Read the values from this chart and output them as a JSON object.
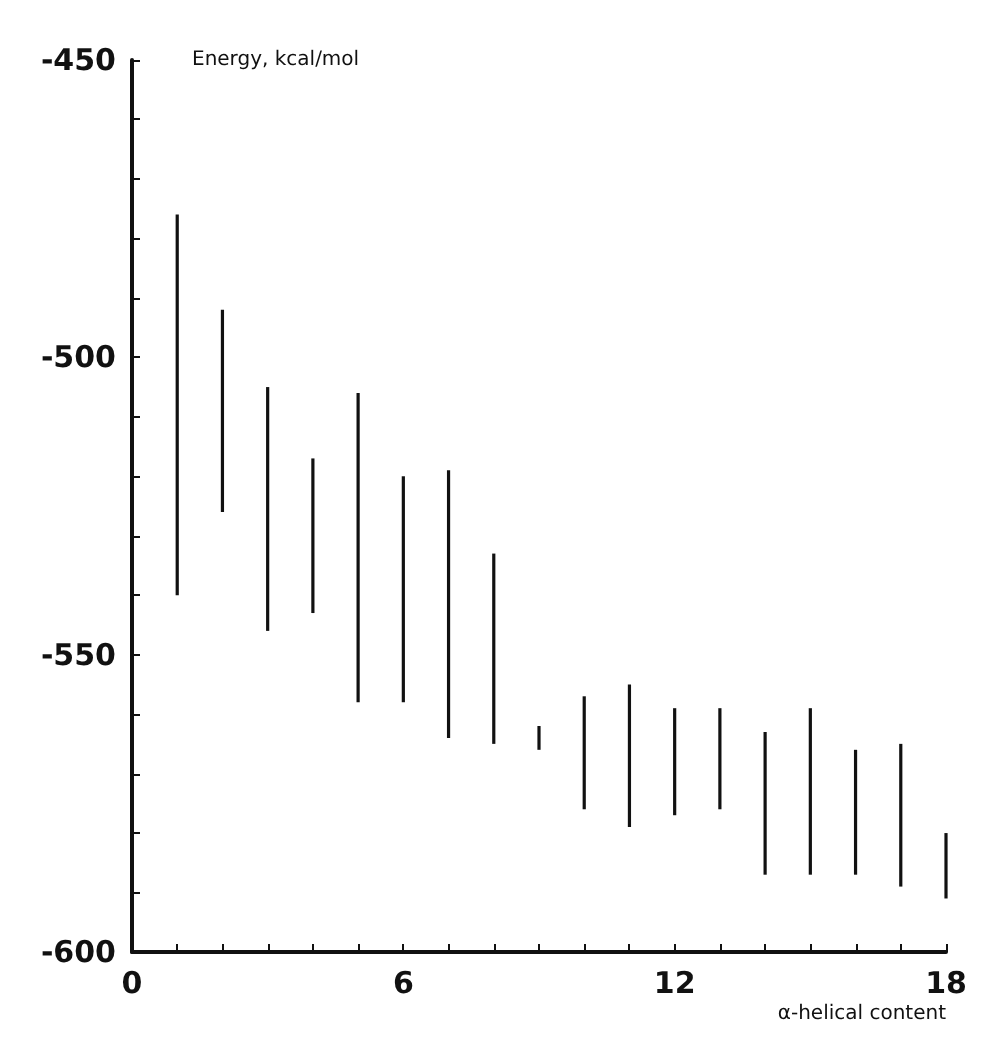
{
  "chart_data": {
    "type": "bar",
    "xlabel": "α-helical content",
    "ylabel": "Energy, kcal/mol",
    "x": [
      1,
      2,
      3,
      4,
      5,
      6,
      7,
      8,
      9,
      10,
      11,
      12,
      13,
      14,
      15,
      16,
      17,
      18
    ],
    "base": [
      -540,
      -526,
      -546,
      -543,
      -558,
      -558,
      -564,
      -565,
      -566,
      -576,
      -579,
      -577,
      -576,
      -587,
      -587,
      -587,
      -589,
      -591
    ],
    "values": [
      64,
      34,
      41,
      26,
      52,
      38,
      45,
      32,
      4,
      19,
      24,
      18,
      17,
      24,
      28,
      21,
      24,
      11
    ],
    "color": "#111111",
    "xlim": [
      0,
      18
    ],
    "xticks": [
      0,
      {
        "value": 1,
        "label": null
      },
      {
        "value": 2,
        "label": null
      },
      {
        "value": 3,
        "label": null
      },
      {
        "value": 4,
        "label": null
      },
      {
        "value": 5,
        "label": null
      },
      6,
      {
        "value": 7,
        "label": null
      },
      {
        "value": 8,
        "label": null
      },
      {
        "value": 9,
        "label": null
      },
      {
        "value": 10,
        "label": null
      },
      {
        "value": 11,
        "label": null
      },
      12,
      {
        "value": 13,
        "label": null
      },
      {
        "value": 14,
        "label": null
      },
      {
        "value": 15,
        "label": null
      },
      {
        "value": 16,
        "label": null
      },
      {
        "value": 17,
        "label": null
      },
      18
    ],
    "ylim": [
      -600,
      -450
    ],
    "yticks": [
      -600,
      {
        "value": -590,
        "label": null
      },
      {
        "value": -580,
        "label": null
      },
      {
        "value": -570,
        "label": null
      },
      {
        "value": -560,
        "label": null
      },
      -550,
      {
        "value": -540,
        "label": null
      },
      {
        "value": -530,
        "label": null
      },
      {
        "value": -520,
        "label": null
      },
      {
        "value": -510,
        "label": null
      },
      -500,
      {
        "value": -490,
        "label": null
      },
      {
        "value": -480,
        "label": null
      },
      {
        "value": -470,
        "label": null
      },
      {
        "value": -460,
        "label": null
      },
      -450
    ]
  }
}
